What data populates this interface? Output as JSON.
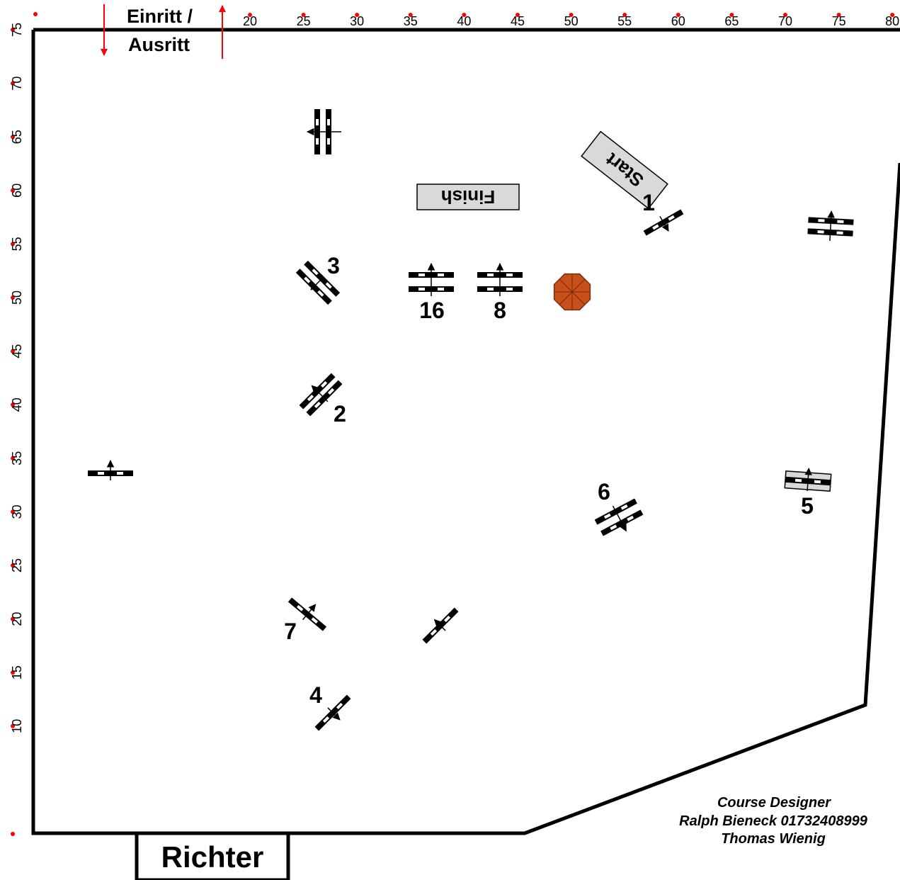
{
  "entrance": {
    "line1": "Einritt /",
    "line2": "Ausritt"
  },
  "judge_label": "Richter",
  "signs": {
    "start": "Start",
    "finish": "Finish"
  },
  "designer": {
    "title": "Course Designer",
    "line1": "Ralph Bieneck 01732408999",
    "line2": "Thomas Wienig"
  },
  "axis": {
    "top_ticks": [
      "20",
      "25",
      "30",
      "35",
      "40",
      "45",
      "50",
      "55",
      "60",
      "65",
      "70",
      "75",
      "80"
    ],
    "left_ticks": [
      "75",
      "70",
      "65",
      "60",
      "55",
      "50",
      "45",
      "40",
      "35",
      "30",
      "25",
      "20",
      "15",
      "10"
    ]
  },
  "obstacle_numbers": {
    "n1": "1",
    "n2": "2",
    "n3": "3",
    "n4": "4",
    "n5": "5",
    "n6": "6",
    "n7": "7",
    "n8": "8",
    "n16": "16"
  },
  "colors": {
    "arena_border": "#000000",
    "tick_marker": "#ff0000",
    "sign_fill": "#d9d9d9",
    "umbrella_fill": "#c8501a"
  }
}
